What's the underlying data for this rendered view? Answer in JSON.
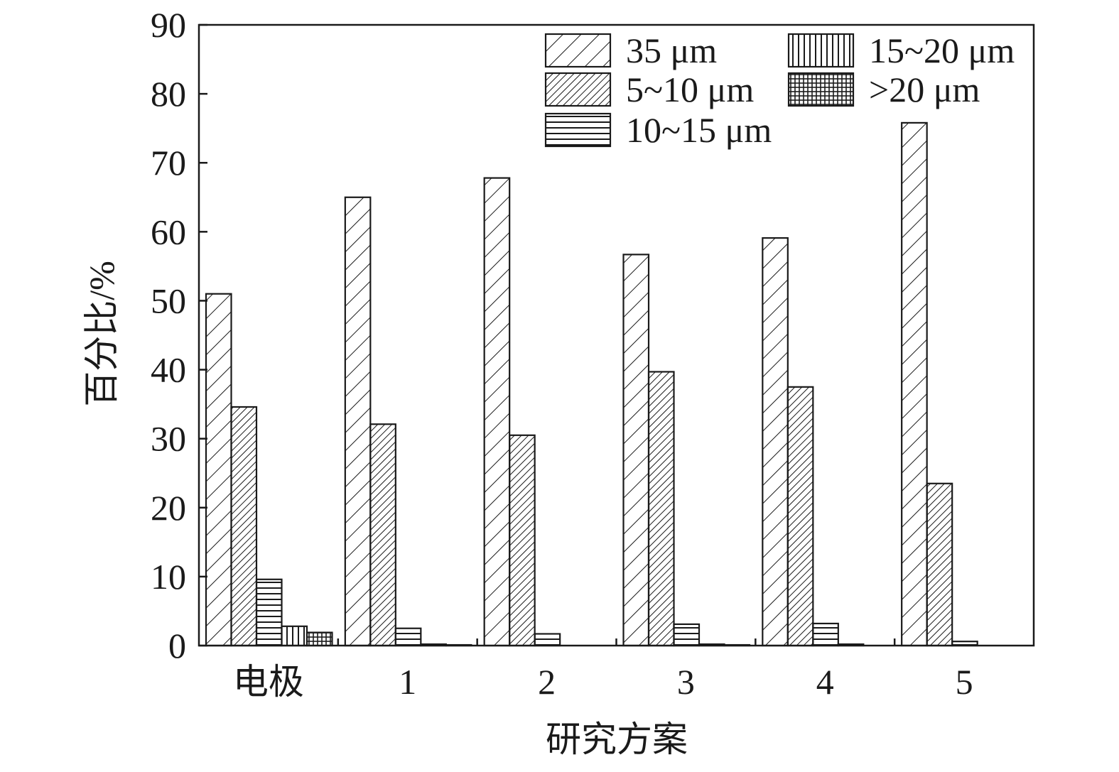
{
  "chart_data": {
    "type": "bar",
    "title": "",
    "xlabel": "研究方案",
    "ylabel": "百分比/%",
    "ylim": [
      0,
      90
    ],
    "yticks": [
      0,
      10,
      20,
      30,
      40,
      50,
      60,
      70,
      80,
      90
    ],
    "categories": [
      "电极",
      "1",
      "2",
      "3",
      "4",
      "5"
    ],
    "series": [
      {
        "name": "35 μm",
        "pattern": "diag-wide",
        "values": [
          51.0,
          65.0,
          67.8,
          56.7,
          59.1,
          75.8
        ]
      },
      {
        "name": "5~10 μm",
        "pattern": "diag-dense",
        "values": [
          34.6,
          32.1,
          30.5,
          39.7,
          37.5,
          23.5
        ]
      },
      {
        "name": "10~15 μm",
        "pattern": "horizontal",
        "values": [
          9.6,
          2.5,
          1.7,
          3.1,
          3.2,
          0.6
        ]
      },
      {
        "name": "15~20 μm",
        "pattern": "vertical",
        "values": [
          2.8,
          0.2,
          0.0,
          0.2,
          0.2,
          0.0
        ]
      },
      {
        "name": ">20 μm",
        "pattern": "grid",
        "values": [
          1.9,
          0.1,
          0.0,
          0.1,
          0.0,
          0.0
        ]
      }
    ],
    "grid": false,
    "legend_position": "top-right"
  }
}
